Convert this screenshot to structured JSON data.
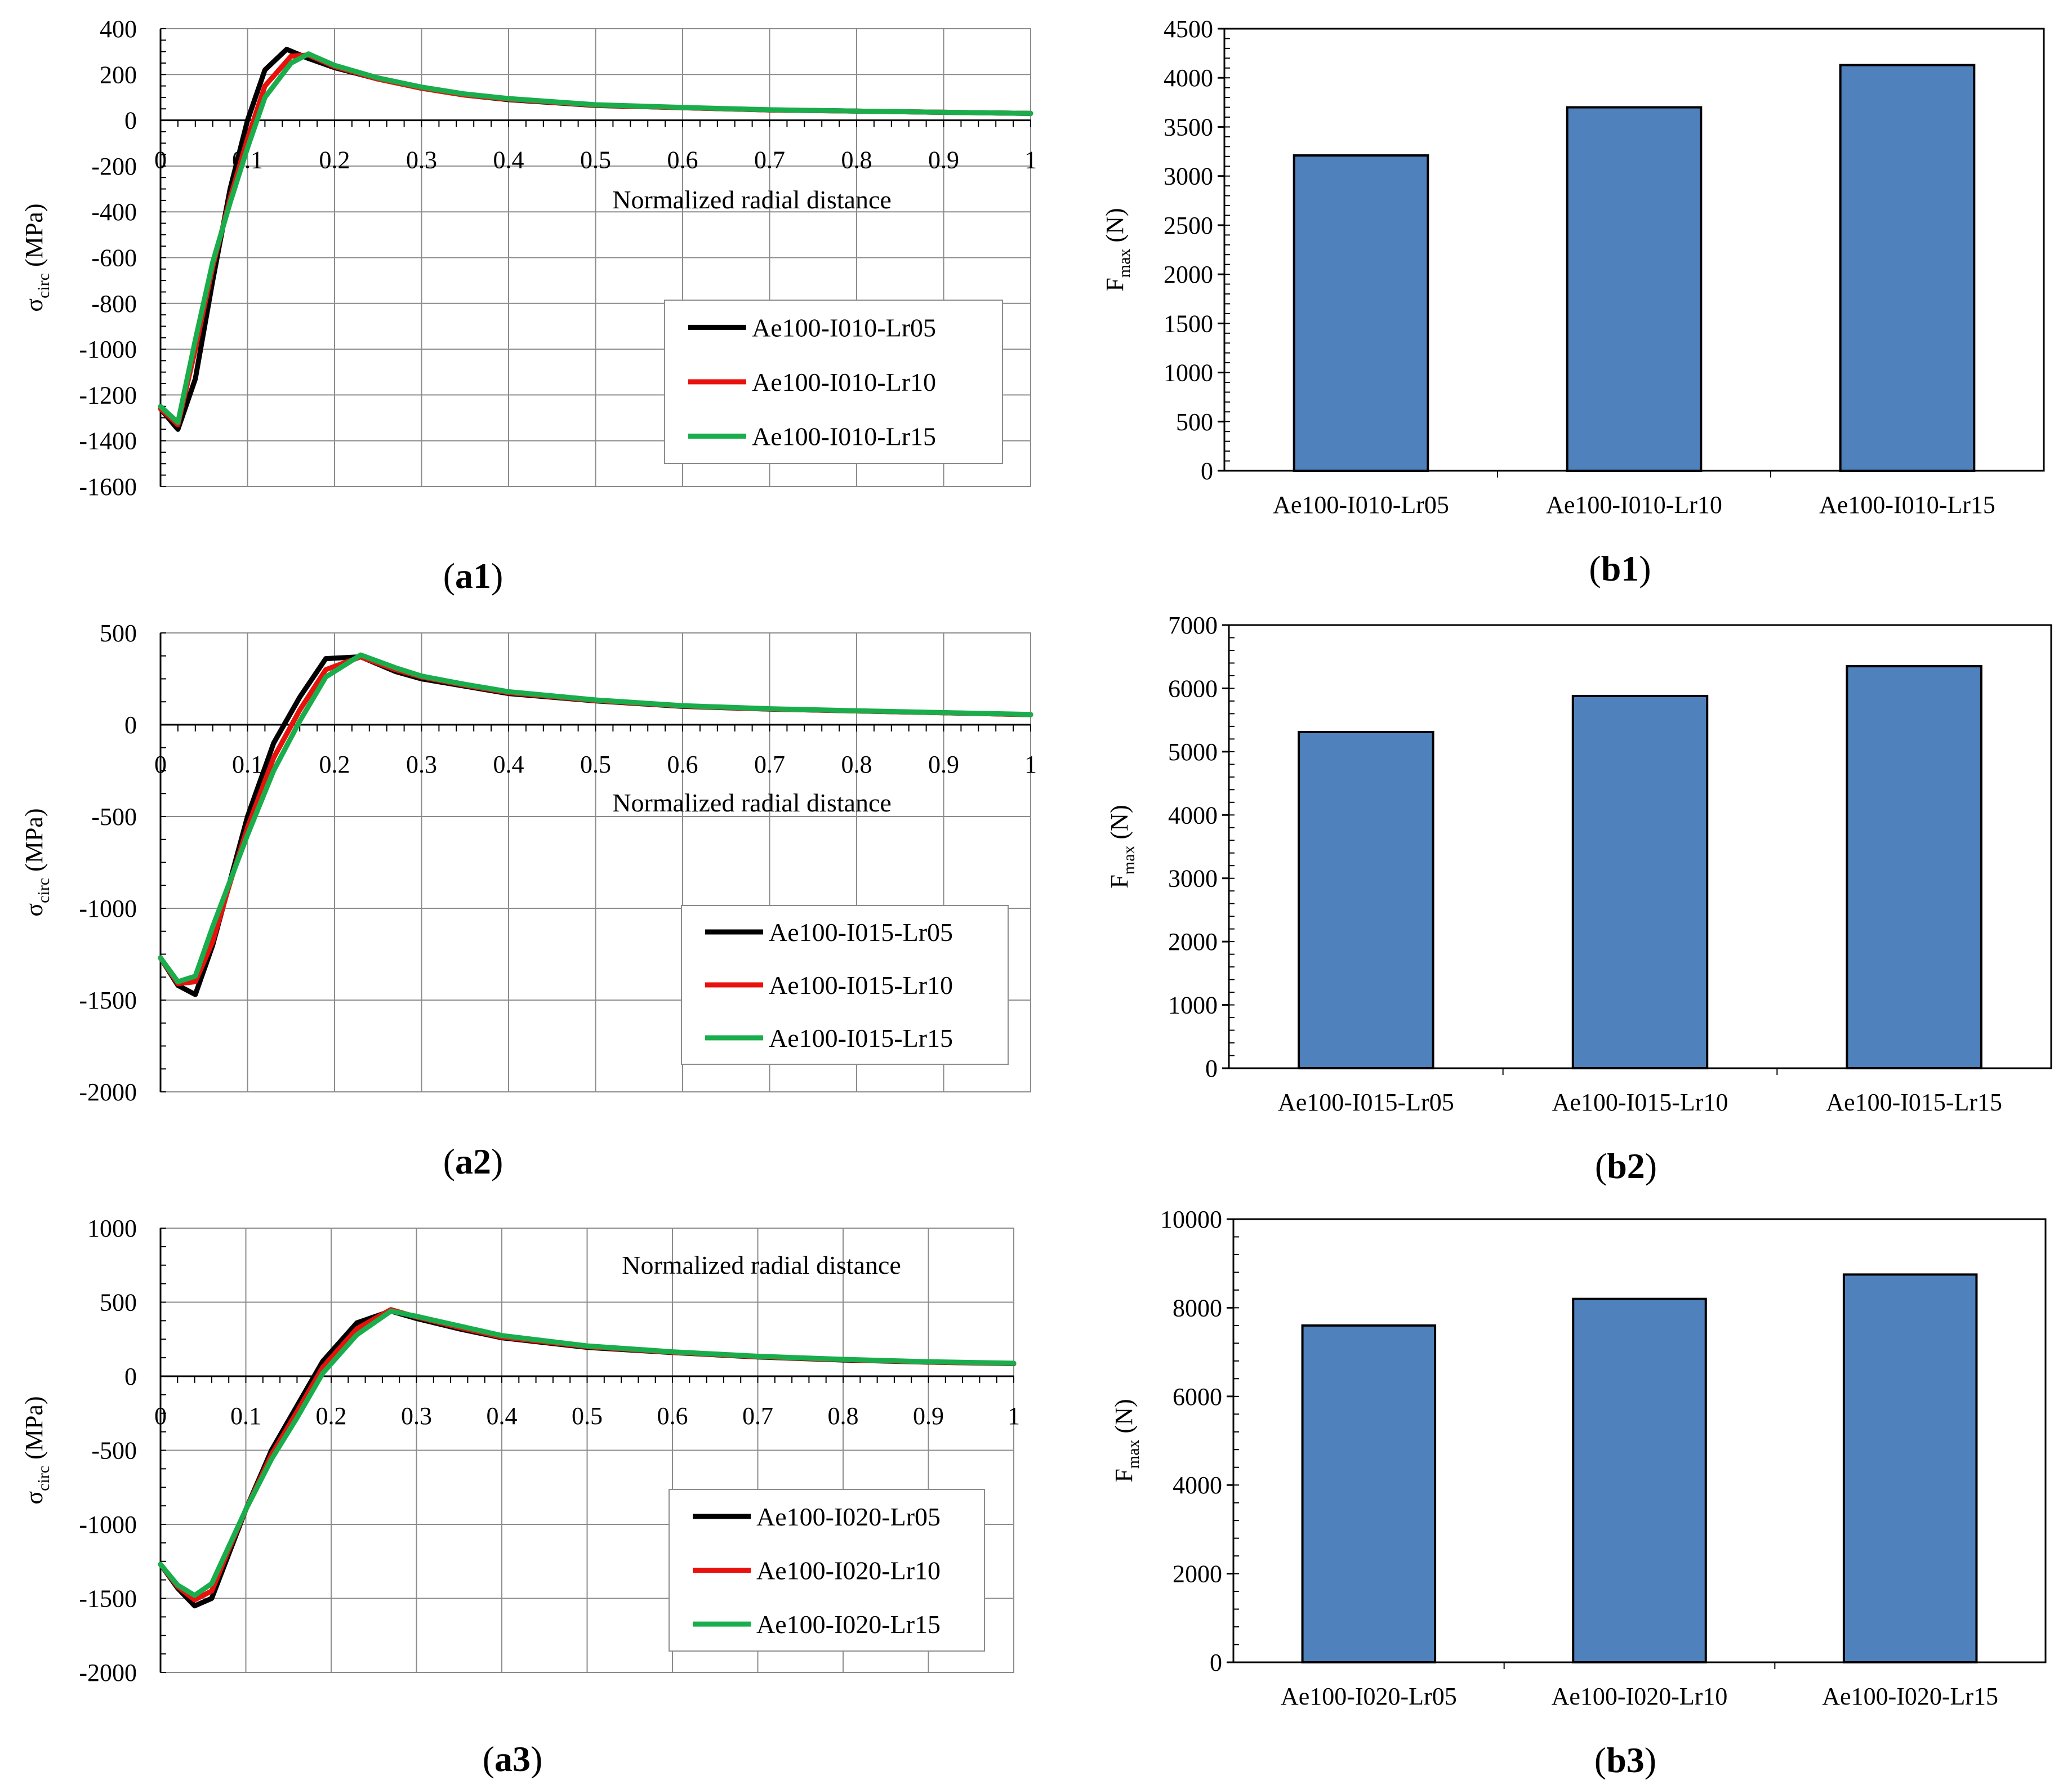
{
  "chart_data": [
    {
      "id": "a1",
      "type": "line",
      "panel_label": "a1",
      "title": "",
      "xlabel": "Normalized  radial distance",
      "ylabel_main": "σ",
      "ylabel_sub": "circ",
      "ylabel_unit": " (MPa)",
      "xlim": [
        0,
        1
      ],
      "ylim": [
        -1600,
        400
      ],
      "xticks": [
        0,
        0.1,
        0.2,
        0.3,
        0.4,
        0.5,
        0.6,
        0.7,
        0.8,
        0.9,
        1
      ],
      "xtick_labels": [
        "0",
        "0.1",
        "0.2",
        "0.3",
        "0.4",
        "0.5",
        "0.6",
        "0.7",
        "0.8",
        "0.9",
        "1"
      ],
      "yticks": [
        400,
        200,
        0,
        -200,
        -400,
        -600,
        -800,
        -1000,
        -1200,
        -1400,
        -1600
      ],
      "ytick_labels": [
        "400",
        "200",
        "0",
        "-200",
        "-400",
        "-600",
        "-800",
        "-1000",
        "-1200",
        "-1400",
        "-1600"
      ],
      "series": [
        {
          "name": "Ae100-I010-Lr05",
          "color": "#000000",
          "x": [
            0,
            0.02,
            0.04,
            0.06,
            0.08,
            0.1,
            0.12,
            0.145,
            0.17,
            0.2,
            0.25,
            0.3,
            0.35,
            0.4,
            0.5,
            0.6,
            0.7,
            0.8,
            0.9,
            1.0
          ],
          "y": [
            -1260,
            -1350,
            -1130,
            -700,
            -300,
            0,
            220,
            310,
            270,
            230,
            180,
            140,
            110,
            90,
            65,
            55,
            45,
            40,
            35,
            30
          ]
        },
        {
          "name": "Ae100-I010-Lr10",
          "color": "#e8110c",
          "x": [
            0,
            0.02,
            0.04,
            0.06,
            0.08,
            0.1,
            0.12,
            0.15,
            0.17,
            0.2,
            0.25,
            0.3,
            0.35,
            0.4,
            0.5,
            0.6,
            0.7,
            0.8,
            0.9,
            1.0
          ],
          "y": [
            -1260,
            -1330,
            -1000,
            -640,
            -340,
            -80,
            150,
            280,
            285,
            235,
            180,
            140,
            110,
            92,
            66,
            55,
            45,
            40,
            35,
            30
          ]
        },
        {
          "name": "Ae100-I010-Lr15",
          "color": "#19ad4c",
          "x": [
            0,
            0.02,
            0.04,
            0.06,
            0.08,
            0.1,
            0.12,
            0.15,
            0.17,
            0.2,
            0.25,
            0.3,
            0.35,
            0.4,
            0.5,
            0.6,
            0.7,
            0.8,
            0.9,
            1.0
          ],
          "y": [
            -1250,
            -1320,
            -960,
            -620,
            -360,
            -120,
            100,
            250,
            290,
            240,
            185,
            145,
            115,
            95,
            68,
            56,
            46,
            40,
            35,
            30
          ]
        }
      ]
    },
    {
      "id": "a2",
      "type": "line",
      "panel_label": "a2",
      "title": "",
      "xlabel": "Normalized radial distance",
      "ylabel_main": "σ",
      "ylabel_sub": "circ",
      "ylabel_unit": " (MPa)",
      "xlim": [
        0,
        1
      ],
      "ylim": [
        -2000,
        500
      ],
      "xticks": [
        0,
        0.1,
        0.2,
        0.3,
        0.4,
        0.5,
        0.6,
        0.7,
        0.8,
        0.9,
        1
      ],
      "xtick_labels": [
        "0",
        "0.1",
        "0.2",
        "0.3",
        "0.4",
        "0.5",
        "0.6",
        "0.7",
        "0.8",
        "0.9",
        "1"
      ],
      "yticks": [
        500,
        0,
        -500,
        -1000,
        -1500,
        -2000
      ],
      "ytick_labels": [
        "500",
        "0",
        "-500",
        "-1000",
        "-1500",
        "-2000"
      ],
      "series": [
        {
          "name": "Ae100-I015-Lr05",
          "color": "#000000",
          "x": [
            0,
            0.02,
            0.04,
            0.06,
            0.08,
            0.1,
            0.13,
            0.16,
            0.19,
            0.23,
            0.27,
            0.3,
            0.35,
            0.4,
            0.5,
            0.6,
            0.7,
            0.8,
            0.9,
            1.0
          ],
          "y": [
            -1270,
            -1420,
            -1470,
            -1200,
            -850,
            -500,
            -100,
            150,
            360,
            370,
            290,
            250,
            210,
            170,
            130,
            100,
            85,
            75,
            65,
            55
          ]
        },
        {
          "name": "Ae100-I015-Lr10",
          "color": "#e8110c",
          "x": [
            0,
            0.02,
            0.04,
            0.06,
            0.08,
            0.1,
            0.13,
            0.16,
            0.19,
            0.23,
            0.27,
            0.3,
            0.35,
            0.4,
            0.5,
            0.6,
            0.7,
            0.8,
            0.9,
            1.0
          ],
          "y": [
            -1270,
            -1410,
            -1400,
            -1180,
            -860,
            -560,
            -180,
            80,
            300,
            370,
            300,
            260,
            215,
            175,
            132,
            102,
            86,
            75,
            65,
            55
          ]
        },
        {
          "name": "Ae100-I015-Lr15",
          "color": "#19ad4c",
          "x": [
            0,
            0.02,
            0.04,
            0.06,
            0.08,
            0.1,
            0.13,
            0.16,
            0.19,
            0.23,
            0.27,
            0.3,
            0.35,
            0.4,
            0.5,
            0.6,
            0.7,
            0.8,
            0.9,
            1.0
          ],
          "y": [
            -1270,
            -1400,
            -1370,
            -1100,
            -850,
            -600,
            -250,
            20,
            260,
            380,
            310,
            265,
            220,
            180,
            135,
            104,
            87,
            76,
            66,
            56
          ]
        }
      ]
    },
    {
      "id": "a3",
      "type": "line",
      "panel_label": "a3",
      "title": "",
      "xlabel": "Normalized radial distance",
      "ylabel_main": "σ",
      "ylabel_sub": "circ",
      "ylabel_unit": " (MPa)",
      "xlim": [
        0,
        1
      ],
      "ylim": [
        -2000,
        1000
      ],
      "xticks": [
        0,
        0.1,
        0.2,
        0.3,
        0.4,
        0.5,
        0.6,
        0.7,
        0.8,
        0.9,
        1
      ],
      "xtick_labels": [
        "0",
        "0.1",
        "0.2",
        "0.3",
        "0.4",
        "0.5",
        "0.6",
        "0.7",
        "0.8",
        "0.9",
        "1"
      ],
      "yticks": [
        1000,
        500,
        0,
        -500,
        -1000,
        -1500,
        -2000
      ],
      "ytick_labels": [
        "1000",
        "500",
        "0",
        "-500",
        "-1000",
        "-1500",
        "-2000"
      ],
      "series": [
        {
          "name": "Ae100-I020-Lr05",
          "color": "#000000",
          "x": [
            0,
            0.02,
            0.04,
            0.06,
            0.08,
            0.1,
            0.13,
            0.16,
            0.19,
            0.23,
            0.27,
            0.3,
            0.35,
            0.4,
            0.5,
            0.6,
            0.7,
            0.8,
            0.9,
            1.0
          ],
          "y": [
            -1270,
            -1430,
            -1550,
            -1500,
            -1200,
            -900,
            -500,
            -200,
            100,
            360,
            440,
            390,
            320,
            260,
            195,
            160,
            130,
            110,
            95,
            85
          ]
        },
        {
          "name": "Ae100-I020-Lr10",
          "color": "#e8110c",
          "x": [
            0,
            0.02,
            0.04,
            0.06,
            0.08,
            0.1,
            0.13,
            0.16,
            0.19,
            0.23,
            0.27,
            0.3,
            0.35,
            0.4,
            0.5,
            0.6,
            0.7,
            0.8,
            0.9,
            1.0
          ],
          "y": [
            -1270,
            -1420,
            -1510,
            -1450,
            -1170,
            -900,
            -530,
            -240,
            60,
            320,
            450,
            400,
            330,
            265,
            200,
            162,
            132,
            112,
            96,
            86
          ]
        },
        {
          "name": "Ae100-I020-Lr15",
          "color": "#19ad4c",
          "x": [
            0,
            0.02,
            0.04,
            0.06,
            0.08,
            0.1,
            0.13,
            0.16,
            0.19,
            0.23,
            0.27,
            0.3,
            0.35,
            0.4,
            0.5,
            0.6,
            0.7,
            0.8,
            0.9,
            1.0
          ],
          "y": [
            -1270,
            -1410,
            -1480,
            -1400,
            -1150,
            -900,
            -560,
            -280,
            20,
            280,
            440,
            405,
            340,
            275,
            205,
            165,
            135,
            114,
            98,
            88
          ]
        }
      ]
    },
    {
      "id": "b1",
      "type": "bar",
      "panel_label": "b1",
      "title": "",
      "xlabel": "",
      "ylabel_main": "F",
      "ylabel_sub": "max",
      "ylabel_unit": " (N)",
      "categories": [
        "Ae100-I010-Lr05",
        "Ae100-I010-Lr10",
        "Ae100-I010-Lr15"
      ],
      "values": [
        3210,
        3700,
        4130
      ],
      "color": "#4f81bd",
      "ylim": [
        0,
        4500
      ],
      "yticks": [
        0,
        500,
        1000,
        1500,
        2000,
        2500,
        3000,
        3500,
        4000,
        4500
      ],
      "ytick_labels": [
        "0",
        "500",
        "1000",
        "1500",
        "2000",
        "2500",
        "3000",
        "3500",
        "4000",
        "4500"
      ]
    },
    {
      "id": "b2",
      "type": "bar",
      "panel_label": "b2",
      "title": "",
      "xlabel": "",
      "ylabel_main": "F",
      "ylabel_sub": "max",
      "ylabel_unit": " (N)",
      "categories": [
        "Ae100-I015-Lr05",
        "Ae100-I015-Lr10",
        "Ae100-I015-Lr15"
      ],
      "values": [
        5310,
        5880,
        6350
      ],
      "color": "#4f81bd",
      "ylim": [
        0,
        7000
      ],
      "yticks": [
        0,
        1000,
        2000,
        3000,
        4000,
        5000,
        6000,
        7000
      ],
      "ytick_labels": [
        "0",
        "1000",
        "2000",
        "3000",
        "4000",
        "5000",
        "6000",
        "7000"
      ]
    },
    {
      "id": "b3",
      "type": "bar",
      "panel_label": "b3",
      "title": "",
      "xlabel": "",
      "ylabel_main": "F",
      "ylabel_sub": "max",
      "ylabel_unit": " (N)",
      "categories": [
        "Ae100-I020-Lr05",
        "Ae100-I020-Lr10",
        "Ae100-I020-Lr15"
      ],
      "values": [
        7600,
        8200,
        8750
      ],
      "color": "#4f81bd",
      "ylim": [
        0,
        10000
      ],
      "yticks": [
        0,
        2000,
        4000,
        6000,
        8000,
        10000
      ],
      "ytick_labels": [
        "0",
        "2000",
        "4000",
        "6000",
        "8000",
        "10000"
      ]
    }
  ]
}
